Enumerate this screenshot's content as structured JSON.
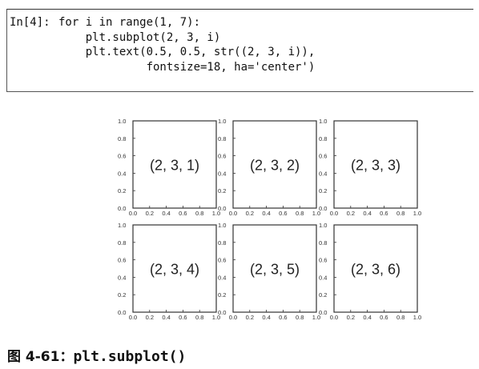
{
  "code": {
    "prompt": "In[4]:",
    "lines": [
      "for i in range(1, 7):",
      "    plt.subplot(2, 3, i)",
      "    plt.text(0.5, 0.5, str((2, 3, i)),",
      "             fontsize=18, ha='center')"
    ]
  },
  "chart_data": {
    "type": "subplot-grid",
    "rows": 2,
    "cols": 3,
    "xlim": [
      0.0,
      1.0
    ],
    "ylim": [
      0.0,
      1.0
    ],
    "x_tick_labels": [
      "0.0",
      "0.2",
      "0.4",
      "0.6",
      "0.8",
      "1.0"
    ],
    "y_tick_labels": [
      "0.0",
      "0.2",
      "0.4",
      "0.6",
      "0.8",
      "1.0"
    ],
    "panels": [
      {
        "label": "(2, 3, 1)",
        "text_x": 0.5,
        "text_y": 0.5
      },
      {
        "label": "(2, 3, 2)",
        "text_x": 0.5,
        "text_y": 0.5
      },
      {
        "label": "(2, 3, 3)",
        "text_x": 0.5,
        "text_y": 0.5
      },
      {
        "label": "(2, 3, 4)",
        "text_x": 0.5,
        "text_y": 0.5
      },
      {
        "label": "(2, 3, 5)",
        "text_x": 0.5,
        "text_y": 0.5
      },
      {
        "label": "(2, 3, 6)",
        "text_x": 0.5,
        "text_y": 0.5
      }
    ]
  },
  "caption": {
    "prefix": "图 4-61：",
    "code": "plt.subplot()"
  }
}
